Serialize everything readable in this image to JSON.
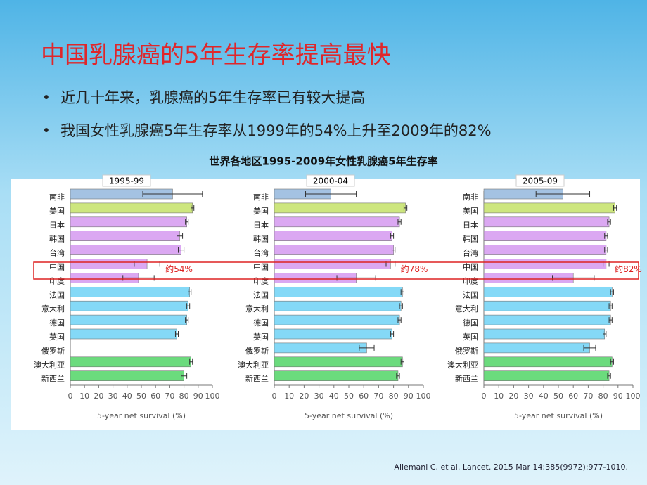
{
  "title": "中国乳腺癌的5年生存率提高最快",
  "bullets": [
    "近几十年来，乳腺癌的5年生存率已有较大提高",
    "我国女性乳腺癌5年生存率从1999年的54%上升至2009年的82%"
  ],
  "figure_title": "世界各地区1995-2009年女性乳腺癌5年生存率",
  "citation": "Allemani C, et al. Lancet. 2015 Mar 14;385(9972):977-1010.",
  "chart_data": [
    {
      "type": "bar",
      "orientation": "horizontal",
      "title": "1995-99",
      "categories": [
        "南非",
        "美国",
        "日本",
        "韩国",
        "台湾",
        "中国",
        "印度",
        "法国",
        "意大利",
        "德国",
        "英国",
        "俄罗斯",
        "澳大利亚",
        "新西兰"
      ],
      "values": [
        72,
        86,
        82,
        77,
        78,
        54,
        48,
        84,
        83,
        82,
        75,
        null,
        85,
        80
      ],
      "errors": [
        21,
        1,
        1,
        2,
        2,
        9,
        11,
        1,
        1,
        1,
        1,
        null,
        1,
        2
      ],
      "colors": [
        "#a4c2e2",
        "#cde67e",
        "#dba8f2",
        "#dba8f2",
        "#dba8f2",
        "#dba8f2",
        "#dba8f2",
        "#84d9f7",
        "#84d9f7",
        "#84d9f7",
        "#84d9f7",
        "#84d9f7",
        "#6bdb7d",
        "#6bdb7d"
      ],
      "xlim": [
        0,
        100
      ],
      "xticks": [
        0,
        10,
        20,
        30,
        40,
        50,
        60,
        70,
        80,
        90,
        100
      ],
      "xlabel": "5-year net survival (%)",
      "annotations": [
        {
          "category": "中国",
          "text": "约54%"
        }
      ]
    },
    {
      "type": "bar",
      "orientation": "horizontal",
      "title": "2000-04",
      "categories": [
        "南非",
        "美国",
        "日本",
        "韩国",
        "台湾",
        "中国",
        "印度",
        "法国",
        "意大利",
        "德国",
        "英国",
        "俄罗斯",
        "澳大利亚",
        "新西兰"
      ],
      "values": [
        38,
        88,
        84,
        79,
        80,
        78,
        55,
        86,
        85,
        84,
        79,
        62,
        86,
        83
      ],
      "errors": [
        17,
        1,
        1,
        1,
        1,
        3,
        13,
        1,
        1,
        1,
        1,
        5,
        1,
        1
      ],
      "colors": [
        "#a4c2e2",
        "#cde67e",
        "#dba8f2",
        "#dba8f2",
        "#dba8f2",
        "#dba8f2",
        "#dba8f2",
        "#84d9f7",
        "#84d9f7",
        "#84d9f7",
        "#84d9f7",
        "#84d9f7",
        "#6bdb7d",
        "#6bdb7d"
      ],
      "xlim": [
        0,
        100
      ],
      "xticks": [
        0,
        10,
        20,
        30,
        40,
        50,
        60,
        70,
        80,
        90,
        100
      ],
      "xlabel": "5-year net survival (%)",
      "annotations": [
        {
          "category": "中国",
          "text": "约78%"
        }
      ]
    },
    {
      "type": "bar",
      "orientation": "horizontal",
      "title": "2005-09",
      "categories": [
        "南非",
        "美国",
        "日本",
        "韩国",
        "台湾",
        "中国",
        "印度",
        "法国",
        "意大利",
        "德国",
        "英国",
        "俄罗斯",
        "澳大利亚",
        "新西兰"
      ],
      "values": [
        53,
        88,
        84,
        82,
        82,
        82,
        60,
        86,
        85,
        85,
        81,
        71,
        86,
        84
      ],
      "errors": [
        18,
        1,
        1,
        1,
        1,
        2,
        14,
        1,
        1,
        1,
        1,
        4,
        1,
        1
      ],
      "colors": [
        "#a4c2e2",
        "#cde67e",
        "#dba8f2",
        "#dba8f2",
        "#dba8f2",
        "#dba8f2",
        "#dba8f2",
        "#84d9f7",
        "#84d9f7",
        "#84d9f7",
        "#84d9f7",
        "#84d9f7",
        "#6bdb7d",
        "#6bdb7d"
      ],
      "xlim": [
        0,
        100
      ],
      "xticks": [
        0,
        10,
        20,
        30,
        40,
        50,
        60,
        70,
        80,
        90,
        100
      ],
      "xlabel": "5-year net survival (%)",
      "annotations": [
        {
          "category": "中国",
          "text": "约82%"
        }
      ]
    }
  ]
}
